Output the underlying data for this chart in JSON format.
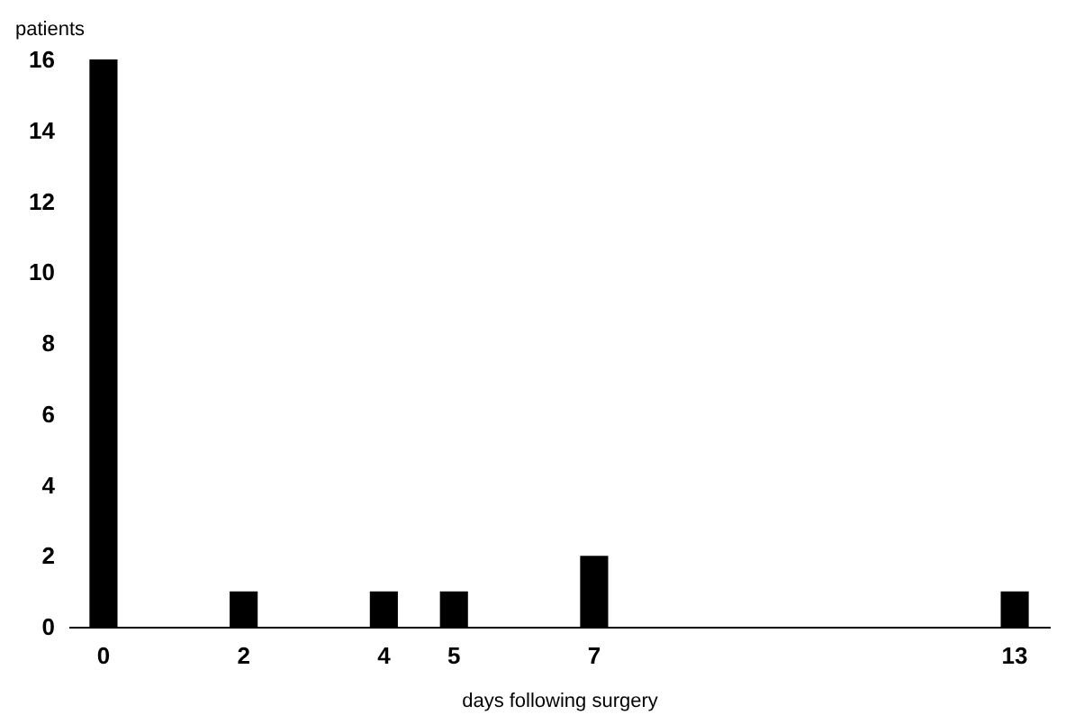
{
  "chart_data": {
    "type": "bar",
    "xlabel": "days following surgery",
    "ylabel": "patients",
    "categories": [
      "0",
      null,
      "2",
      null,
      "4",
      "5",
      null,
      "7",
      null,
      null,
      null,
      null,
      null,
      "13"
    ],
    "values": [
      16,
      0,
      1,
      0,
      1,
      1,
      0,
      2,
      0,
      0,
      0,
      0,
      0,
      1
    ],
    "color": "#000000",
    "ylim": [
      0,
      16
    ],
    "yticks": [
      0,
      2,
      4,
      6,
      8,
      10,
      12,
      14,
      16
    ],
    "grid": false
  }
}
